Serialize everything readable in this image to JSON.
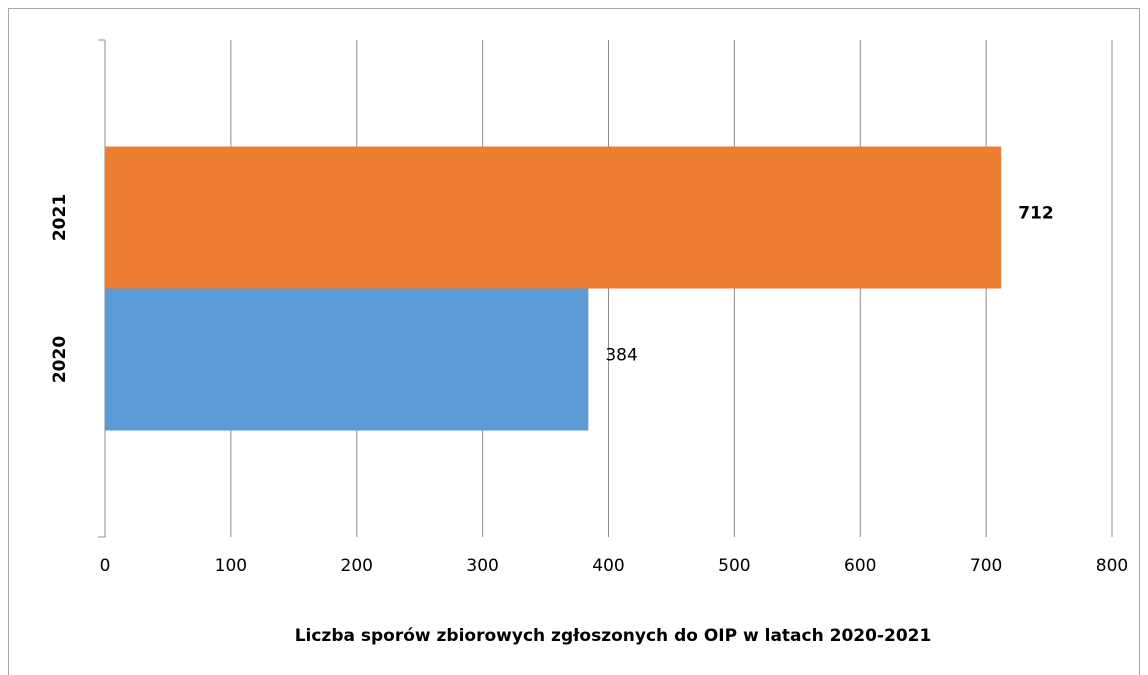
{
  "chart_data": {
    "type": "hbar",
    "title": "Liczba sporów zbiorowych zgłoszonych do OIP w latach 2020-2021",
    "categories": [
      "2020",
      "2021"
    ],
    "values": [
      384,
      712
    ],
    "colors": [
      "#5b9bd5",
      "#ed7d31"
    ],
    "value_label_weight": [
      "normal",
      "bold"
    ],
    "xlim": [
      0,
      800
    ],
    "xticks": [
      0,
      100,
      200,
      300,
      400,
      500,
      600,
      700,
      800
    ],
    "grid": true
  }
}
